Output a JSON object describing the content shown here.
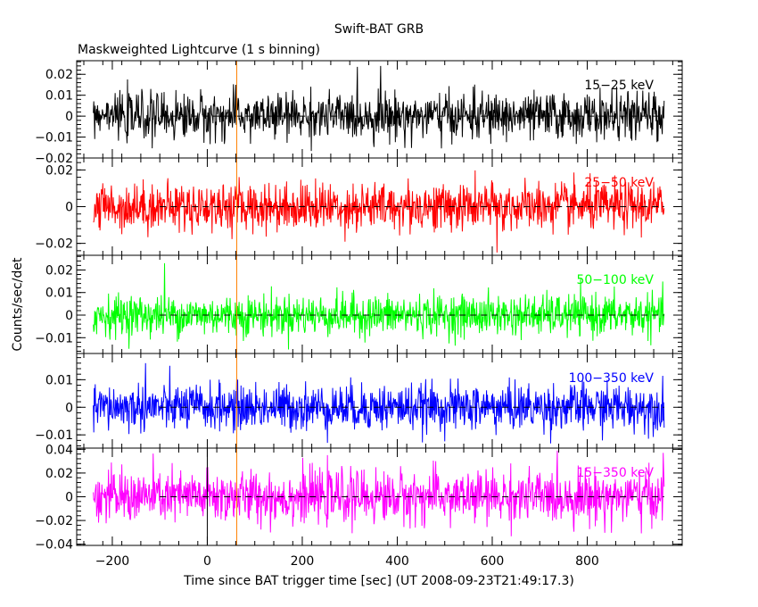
{
  "title": "Swift-BAT GRB",
  "subtitle": "Maskweighted Lightcurve (1 s binning)",
  "ylabel": "Counts/sec/det",
  "xlabel": "Time since BAT trigger time [sec] (UT 2008-09-23T21:49:17.3)",
  "chart_data": {
    "type": "line",
    "title": "Swift-BAT GRB",
    "subtitle": "Maskweighted Lightcurve (1 s binning)",
    "xlabel": "Time since BAT trigger time [sec] (UT 2008-09-23T21:49:17.3)",
    "ylabel": "Counts/sec/det",
    "xlim": [
      -275,
      1000
    ],
    "x_ticks": [
      -200,
      0,
      200,
      400,
      600,
      800
    ],
    "x_tick_labels": [
      "−200",
      "0",
      "200",
      "400",
      "600",
      "800"
    ],
    "data_range": [
      -240,
      962
    ],
    "bin_seconds": 1,
    "markers": [
      {
        "name": "trigger",
        "x": 0,
        "color": "#000000"
      },
      {
        "name": "marker",
        "x": 62,
        "color": "#ff8000"
      }
    ],
    "panels": [
      {
        "band": "15−25 keV",
        "color": "#000000",
        "ylim": [
          -0.02,
          0.0265
        ],
        "y_ticks": [
          -0.02,
          -0.01,
          0,
          0.01,
          0.02
        ],
        "y_tick_labels": [
          "−0.02",
          "−0.01",
          "0",
          "0.01",
          "0.02"
        ],
        "noise_sigma": 0.0055,
        "peak": {
          "x": 365,
          "y": 0.024
        }
      },
      {
        "band": "25−50 keV",
        "color": "#ff0000",
        "ylim": [
          -0.0265,
          0.0265
        ],
        "y_ticks": [
          -0.02,
          0,
          0.02
        ],
        "y_tick_labels": [
          "−0.02",
          "0",
          "0.02"
        ],
        "noise_sigma": 0.0065,
        "peak": {
          "x": 610,
          "y": -0.025
        }
      },
      {
        "band": "50−100 keV",
        "color": "#00ff00",
        "ylim": [
          -0.017,
          0.0265
        ],
        "y_ticks": [
          -0.01,
          0,
          0.01,
          0.02
        ],
        "y_tick_labels": [
          "−0.01",
          "0",
          "0.01",
          "0.02"
        ],
        "noise_sigma": 0.0045,
        "peak": {
          "x": -90,
          "y": 0.023
        }
      },
      {
        "band": "100−350 keV",
        "color": "#0000ff",
        "ylim": [
          -0.0148,
          0.0195
        ],
        "y_ticks": [
          -0.01,
          0,
          0.01
        ],
        "y_tick_labels": [
          "−0.01",
          "0",
          "0.01"
        ],
        "noise_sigma": 0.0042,
        "peak": {
          "x": -130,
          "y": 0.016
        }
      },
      {
        "band": "15−350 keV",
        "color": "#ff00ff",
        "ylim": [
          -0.041,
          0.041
        ],
        "y_ticks": [
          -0.04,
          -0.02,
          0,
          0.02,
          0.04
        ],
        "y_tick_labels": [
          "−0.04",
          "−0.02",
          "0",
          "0.02",
          "0.04"
        ],
        "noise_sigma": 0.011,
        "peak": {
          "x": 960,
          "y": 0.037
        }
      }
    ]
  }
}
